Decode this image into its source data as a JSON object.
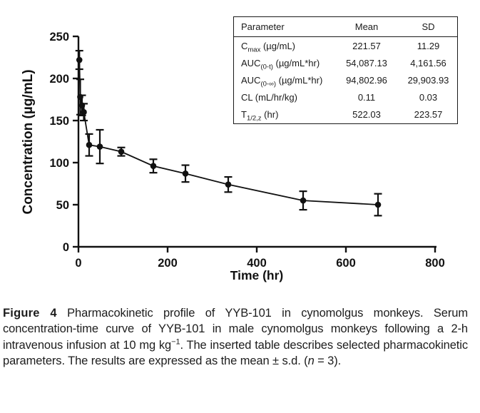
{
  "colors": {
    "ink": "#111111",
    "background": "#ffffff"
  },
  "chart_data": {
    "type": "line",
    "title": "",
    "xlabel": "Time (hr)",
    "ylabel": "Concentration (µg/mL)",
    "xlim": [
      0,
      800
    ],
    "ylim": [
      0,
      250
    ],
    "x_ticks": [
      0,
      200,
      400,
      600,
      800
    ],
    "y_ticks": [
      0,
      50,
      100,
      150,
      200,
      250
    ],
    "grid": false,
    "legend": "none",
    "marker": "filled-circle",
    "error_bars": "sd",
    "series": [
      {
        "name": "YYB-101 serum concentration (mean ± s.d., n=3)",
        "x": [
          2,
          4,
          8,
          12,
          24,
          48,
          96,
          168,
          240,
          336,
          504,
          672
        ],
        "y": [
          222,
          178,
          168,
          160,
          121,
          119,
          113,
          96,
          87,
          74,
          55,
          50
        ],
        "sd": [
          11,
          21,
          12,
          10,
          13,
          20,
          5,
          8,
          10,
          9,
          11,
          13
        ]
      }
    ]
  },
  "inset_table": {
    "headers": [
      "Parameter",
      "Mean",
      "SD"
    ],
    "rows": [
      {
        "param_base": "C",
        "param_sub": "max",
        "param_rest": " (µg/mL)",
        "mean": "221.57",
        "sd": "11.29"
      },
      {
        "param_base": "AUC",
        "param_sub": "(0-t)",
        "param_rest": " (µg/mL*hr)",
        "mean": "54,087.13",
        "sd": "4,161.56"
      },
      {
        "param_base": "AUC",
        "param_sub": "(0-∞)",
        "param_rest": " (µg/mL*hr)",
        "mean": "94,802.96",
        "sd": "29,903.93"
      },
      {
        "param_base": "CL (mL/hr/kg)",
        "param_sub": "",
        "param_rest": "",
        "mean": "0.11",
        "sd": "0.03"
      },
      {
        "param_base": "T",
        "param_sub": "1/2,z",
        "param_rest": " (hr)",
        "mean": "522.03",
        "sd": "223.57"
      }
    ]
  },
  "caption": {
    "label": "Figure 4",
    "part1": " Pharmacokinetic profile of YYB-101 in cynomolgus monkeys. Serum concentration-time curve of YYB-101 in male cynomolgus monkeys following a 2-h intravenous infusion at 10 mg kg",
    "sup": "−1",
    "part2": ". The inserted table describes selected pharmacokinetic parameters. The results are expressed as the mean ± s.d. (",
    "italic_n": "n",
    "part3": " = 3)."
  }
}
